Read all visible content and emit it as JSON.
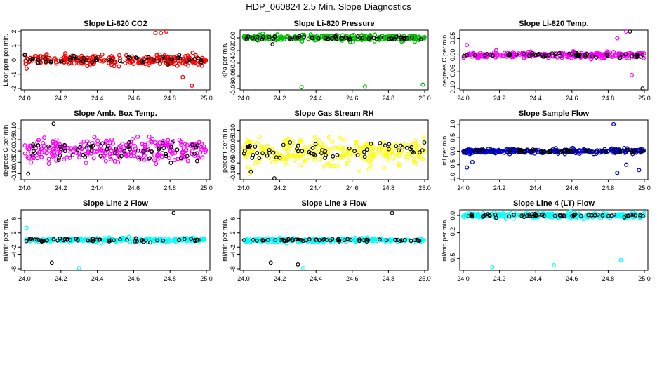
{
  "title": "HDP_060824  2.5 Min. Slope Diagnostics",
  "chart_data": [
    {
      "type": "scatter",
      "title": "Slope Li-820 CO2",
      "ylabel": "Licor ppm per min.",
      "color": "#ff0000",
      "xlim": [
        24.0,
        25.0
      ],
      "ylim": [
        -2,
        2
      ],
      "yticks": [
        -2,
        -1,
        0,
        1,
        2
      ],
      "spread": 0.32,
      "outliers": [
        [
          24.72,
          1.9
        ],
        [
          24.75,
          1.9
        ],
        [
          24.78,
          2.0
        ],
        [
          24.92,
          -1.8
        ],
        [
          24.87,
          -1.2
        ]
      ],
      "black_outliers": []
    },
    {
      "type": "scatter",
      "title": "Slope Li-820 Pressure",
      "ylabel": "kPa per min.",
      "color": "#00bb00",
      "xlim": [
        24.0,
        25.0
      ],
      "ylim": [
        -0.08,
        0.01
      ],
      "yticks": [
        -0.08,
        -0.06,
        -0.04,
        -0.02,
        0.0
      ],
      "spread": 0.004,
      "outliers": [
        [
          24.32,
          -0.078
        ],
        [
          24.67,
          -0.077
        ],
        [
          24.99,
          -0.074
        ]
      ],
      "black_outliers": [
        [
          24.16,
          -0.01
        ]
      ]
    },
    {
      "type": "scatter",
      "title": "Slope Li-820 Temp.",
      "ylabel": "degrees C per min.",
      "color": "#ff00ff",
      "xlim": [
        24.0,
        25.0
      ],
      "ylim": [
        -0.1,
        0.07
      ],
      "yticks": [
        -0.1,
        -0.05,
        0.0,
        0.05
      ],
      "spread": 0.008,
      "outliers": [
        [
          24.02,
          0.03
        ],
        [
          24.85,
          0.05
        ],
        [
          24.9,
          0.07
        ],
        [
          24.93,
          -0.06
        ]
      ],
      "black_outliers": [
        [
          24.99,
          -0.1
        ],
        [
          24.92,
          0.07
        ]
      ]
    },
    {
      "type": "scatter",
      "title": "Slope Amb. Box Temp.",
      "ylabel": "degrees C per min.",
      "color": "#ff00ff",
      "xlim": [
        24.0,
        25.0
      ],
      "ylim": [
        -0.12,
        0.13
      ],
      "yticks": [
        -0.1,
        -0.05,
        0.0,
        0.05,
        0.1
      ],
      "spread": 0.05,
      "outliers": [],
      "black_outliers": [
        [
          24.16,
          0.12
        ],
        [
          24.02,
          -0.1
        ]
      ]
    },
    {
      "type": "scatter",
      "title": "Slope Gas Stream RH",
      "ylabel": "percent per min.",
      "color": "#ffff00",
      "xlim": [
        24.0,
        25.0
      ],
      "ylim": [
        -0.12,
        0.14
      ],
      "yticks": [
        -0.1,
        -0.05,
        0.0,
        0.05,
        0.1
      ],
      "spread": 0.055,
      "outliers": [],
      "black_outliers": [
        [
          24.17,
          -0.12
        ],
        [
          24.04,
          -0.09
        ]
      ]
    },
    {
      "type": "scatter",
      "title": "Slope Sample Flow",
      "ylabel": "ml per min.",
      "color": "#0000cc",
      "xlim": [
        24.0,
        25.0
      ],
      "ylim": [
        -1.0,
        1.1
      ],
      "yticks": [
        -1.0,
        -0.5,
        0.0,
        0.5,
        1.0
      ],
      "spread": 0.08,
      "outliers": [
        [
          24.02,
          -0.6
        ],
        [
          24.05,
          -0.4
        ],
        [
          24.83,
          1.0
        ],
        [
          24.85,
          -0.8
        ],
        [
          24.97,
          -0.7
        ],
        [
          24.9,
          -0.5
        ]
      ],
      "black_outliers": []
    },
    {
      "type": "scatter",
      "title": "Slope Line 2 Flow",
      "ylabel": "ml/min per min.",
      "color": "#00ffff",
      "xlim": [
        24.0,
        25.0
      ],
      "ylim": [
        -8,
        8
      ],
      "yticks": [
        -8,
        -4,
        -2,
        2,
        6
      ],
      "spread": 0.5,
      "outliers": [
        [
          24.01,
          3.4
        ],
        [
          24.3,
          -7.8
        ]
      ],
      "black_outliers": [
        [
          24.15,
          -6.3
        ],
        [
          24.82,
          7.5
        ]
      ]
    },
    {
      "type": "scatter",
      "title": "Slope Line 3 Flow",
      "ylabel": "ml/min per min.",
      "color": "#00ffff",
      "xlim": [
        24.0,
        25.0
      ],
      "ylim": [
        -8,
        8
      ],
      "yticks": [
        -8,
        -4,
        -2,
        2,
        6
      ],
      "spread": 0.45,
      "outliers": [
        [
          24.33,
          -7.8
        ]
      ],
      "black_outliers": [
        [
          24.15,
          -6.3
        ],
        [
          24.82,
          7.5
        ],
        [
          24.3,
          -6.8
        ]
      ]
    },
    {
      "type": "scatter",
      "title": "Slope Line 4 (LT) Flow",
      "ylabel": "ml/min per min.",
      "color": "#00ffff",
      "xlim": [
        24.0,
        25.0
      ],
      "ylim": [
        -0.62,
        0.05
      ],
      "yticks": [
        -0.5,
        -0.2,
        0.0
      ],
      "spread": 0.025,
      "outliers": [
        [
          24.16,
          -0.6
        ],
        [
          24.5,
          -0.58
        ],
        [
          24.87,
          -0.52
        ]
      ],
      "black_outliers": []
    }
  ],
  "xticks": [
    "24.0",
    "24.2",
    "24.4",
    "24.6",
    "24.8",
    "25.0"
  ]
}
